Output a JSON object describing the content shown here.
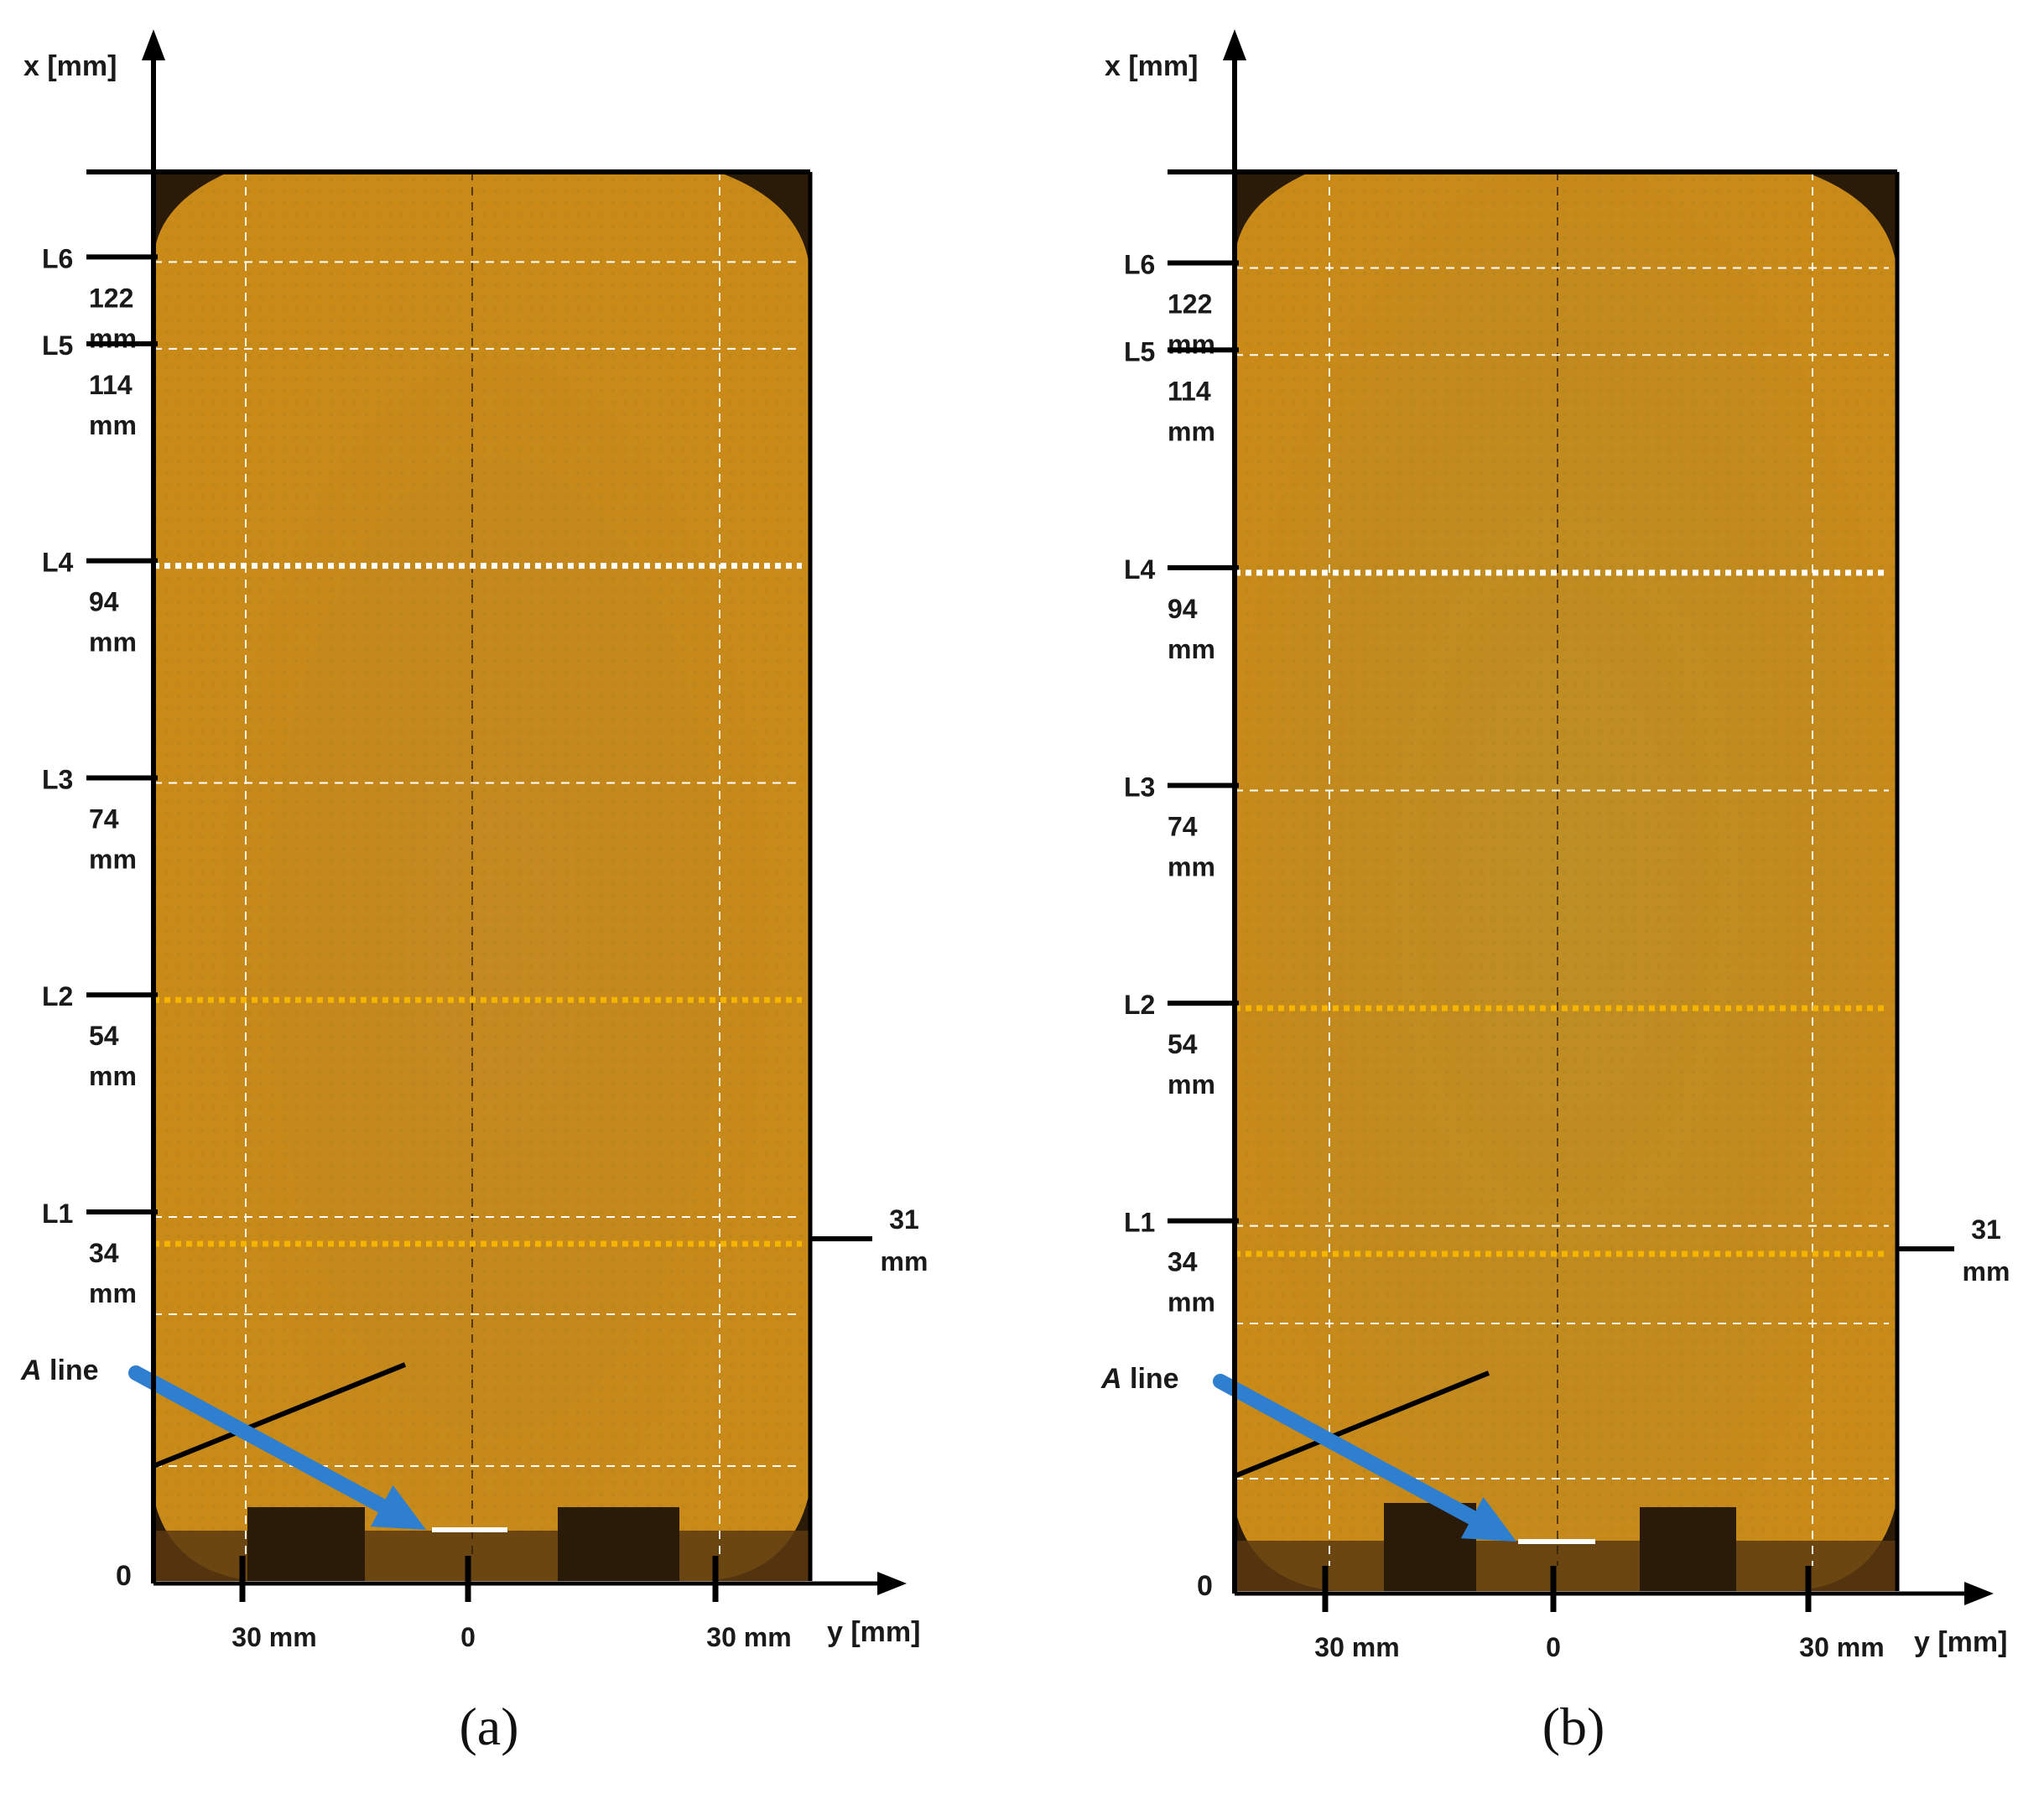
{
  "figure": {
    "panels": [
      {
        "id": "a",
        "caption": "(a)",
        "x_axis_label": "x [mm]",
        "y_axis_label": "y [mm]",
        "origin_label": "0",
        "bottom_ticks": {
          "left": "30 mm",
          "center": "0",
          "right": "30 mm"
        },
        "levels": [
          {
            "name": "L6",
            "value": "122",
            "unit": "mm",
            "line_style": "white-dashed"
          },
          {
            "name": "L5",
            "value": "114",
            "unit": "mm",
            "line_style": "white-dashed"
          },
          {
            "name": "L4",
            "value": "94",
            "unit": "mm",
            "line_style": "white-dotted"
          },
          {
            "name": "L3",
            "value": "74",
            "unit": "mm",
            "line_style": "white-dashed"
          },
          {
            "name": "L2",
            "value": "54",
            "unit": "mm",
            "line_style": "orange-dotted"
          },
          {
            "name": "L1",
            "value": "34",
            "unit": "mm",
            "line_style": "white-dashed"
          }
        ],
        "side_marker": {
          "value": "31",
          "unit": "mm",
          "line_style": "orange-dotted"
        },
        "a_line_label": {
          "italic": "A",
          "rest": " line"
        }
      },
      {
        "id": "b",
        "caption": "(b)",
        "x_axis_label": "x [mm]",
        "y_axis_label": "y [mm]",
        "origin_label": "0",
        "bottom_ticks": {
          "left": "30 mm",
          "center": "0",
          "right": "30 mm"
        },
        "levels": [
          {
            "name": "L6",
            "value": "122",
            "unit": "mm",
            "line_style": "white-dashed"
          },
          {
            "name": "L5",
            "value": "114",
            "unit": "mm",
            "line_style": "white-dashed"
          },
          {
            "name": "L4",
            "value": "94",
            "unit": "mm",
            "line_style": "white-dotted"
          },
          {
            "name": "L3",
            "value": "74",
            "unit": "mm",
            "line_style": "white-dashed"
          },
          {
            "name": "L2",
            "value": "54",
            "unit": "mm",
            "line_style": "orange-dotted"
          },
          {
            "name": "L1",
            "value": "34",
            "unit": "mm",
            "line_style": "white-dashed"
          }
        ],
        "side_marker": {
          "value": "31",
          "unit": "mm",
          "line_style": "orange-dotted"
        },
        "a_line_label": {
          "italic": "A",
          "rest": " line"
        }
      }
    ],
    "colors": {
      "background": "#c98a18",
      "dark": "#2a1a08",
      "arrow": "#2f7fd0",
      "orange_line": "#f5b400",
      "white_line": "#ffffff",
      "axis": "#000000"
    }
  }
}
